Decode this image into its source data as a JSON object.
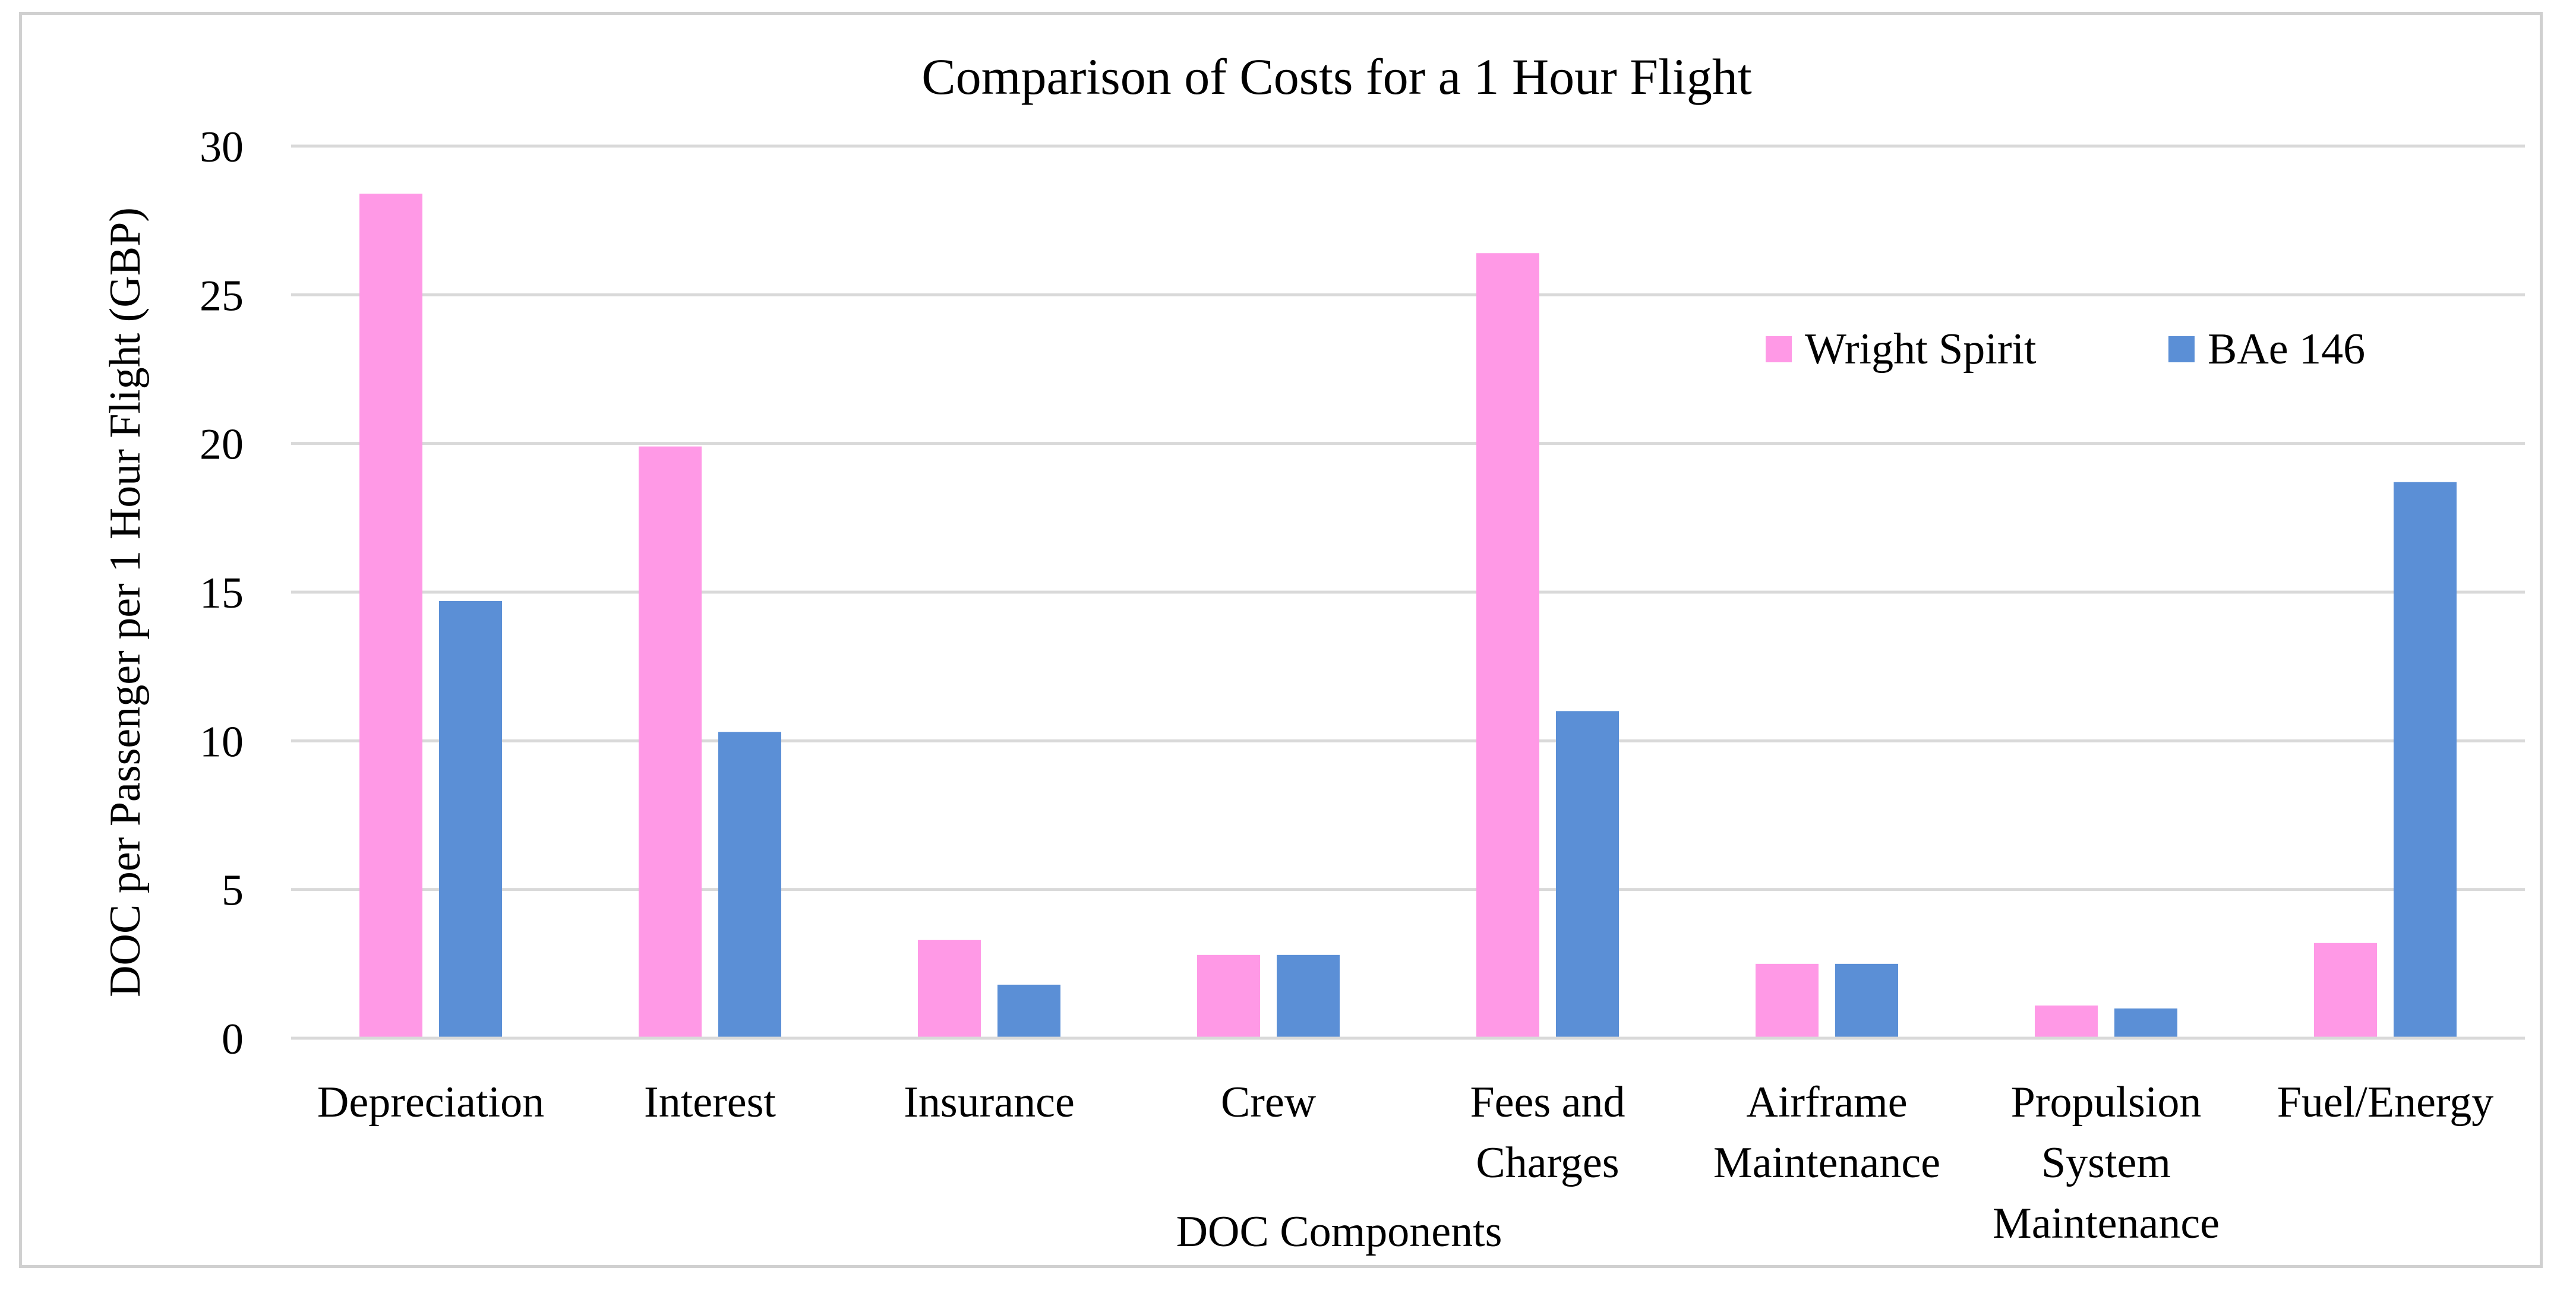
{
  "chart_data": {
    "type": "bar",
    "title": "Comparison of Costs for a 1 Hour Flight",
    "xlabel": "DOC Components",
    "ylabel": "DOC per Passenger per 1 Hour Flight (GBP)",
    "ylim": [
      0,
      30
    ],
    "yticks": [
      0,
      5,
      10,
      15,
      20,
      25,
      30
    ],
    "grid": true,
    "legend_position": "top-right",
    "categories": [
      [
        "Depreciation"
      ],
      [
        "Interest"
      ],
      [
        "Insurance"
      ],
      [
        "Crew"
      ],
      [
        "Fees and",
        "Charges"
      ],
      [
        "Airframe",
        "Maintenance"
      ],
      [
        "Propulsion",
        "System",
        "Maintenance"
      ],
      [
        "Fuel/Energy"
      ]
    ],
    "series": [
      {
        "name": "Wright Spirit",
        "color": "#ff99e6",
        "values": [
          28.4,
          19.9,
          3.3,
          2.8,
          26.4,
          2.5,
          1.1,
          3.2
        ]
      },
      {
        "name": "BAe 146",
        "color": "#5b8fd6",
        "values": [
          14.7,
          10.3,
          1.8,
          2.8,
          11.0,
          2.5,
          1.0,
          18.7
        ]
      }
    ],
    "gridline_color": "#d9d9d9",
    "axis_color": "#d9d9d9"
  }
}
